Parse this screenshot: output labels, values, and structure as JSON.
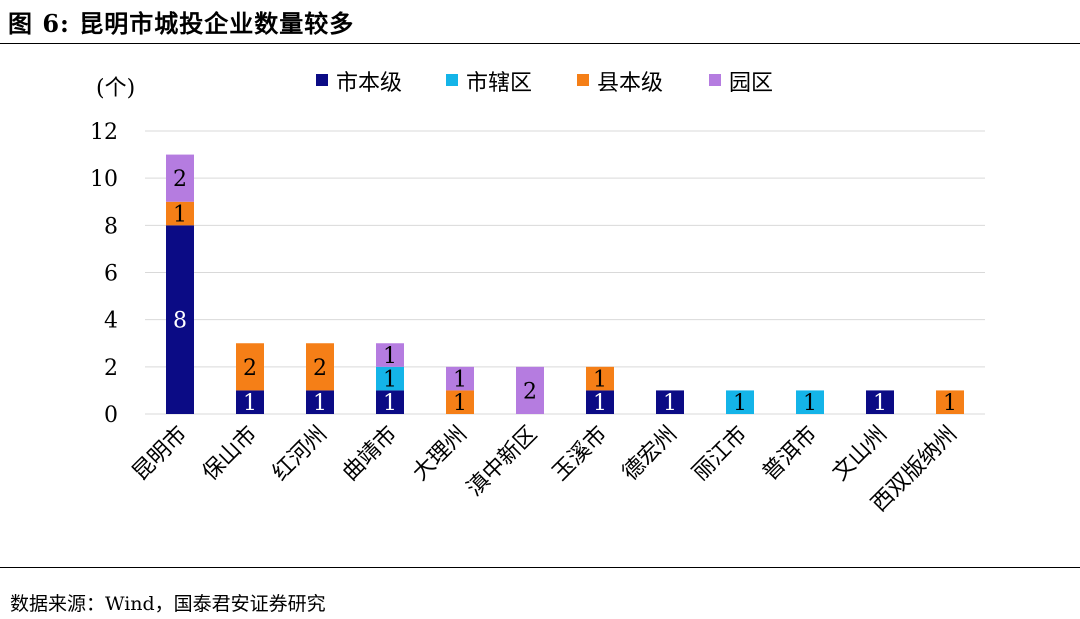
{
  "figure": {
    "title": "图 6:  昆明市城投企业数量较多",
    "source": "数据来源：Wind，国泰君安证券研究"
  },
  "chart_data": {
    "type": "bar",
    "stacked": true,
    "unit_label": "(个)",
    "ylim": [
      0,
      12
    ],
    "yticks": [
      0,
      2,
      4,
      6,
      8,
      10,
      12
    ],
    "grid": true,
    "legend_position": "top",
    "categories": [
      "昆明市",
      "保山市",
      "红河州",
      "曲靖市",
      "大理州",
      "滇中新区",
      "玉溪市",
      "德宏州",
      "丽江市",
      "普洱市",
      "文山州",
      "西双版纳州"
    ],
    "series": [
      {
        "name": "市本级",
        "color": "#0b0b85",
        "values": [
          8,
          1,
          1,
          1,
          0,
          0,
          1,
          1,
          0,
          0,
          1,
          0
        ]
      },
      {
        "name": "市辖区",
        "color": "#14b4e8",
        "values": [
          0,
          0,
          0,
          1,
          0,
          0,
          0,
          0,
          1,
          1,
          0,
          0
        ]
      },
      {
        "name": "县本级",
        "color": "#f57f17",
        "values": [
          1,
          2,
          2,
          0,
          1,
          0,
          1,
          0,
          0,
          0,
          0,
          1
        ]
      },
      {
        "name": "园区",
        "color": "#b57ce0",
        "values": [
          2,
          0,
          0,
          1,
          1,
          2,
          0,
          0,
          0,
          0,
          0,
          0
        ]
      }
    ]
  }
}
